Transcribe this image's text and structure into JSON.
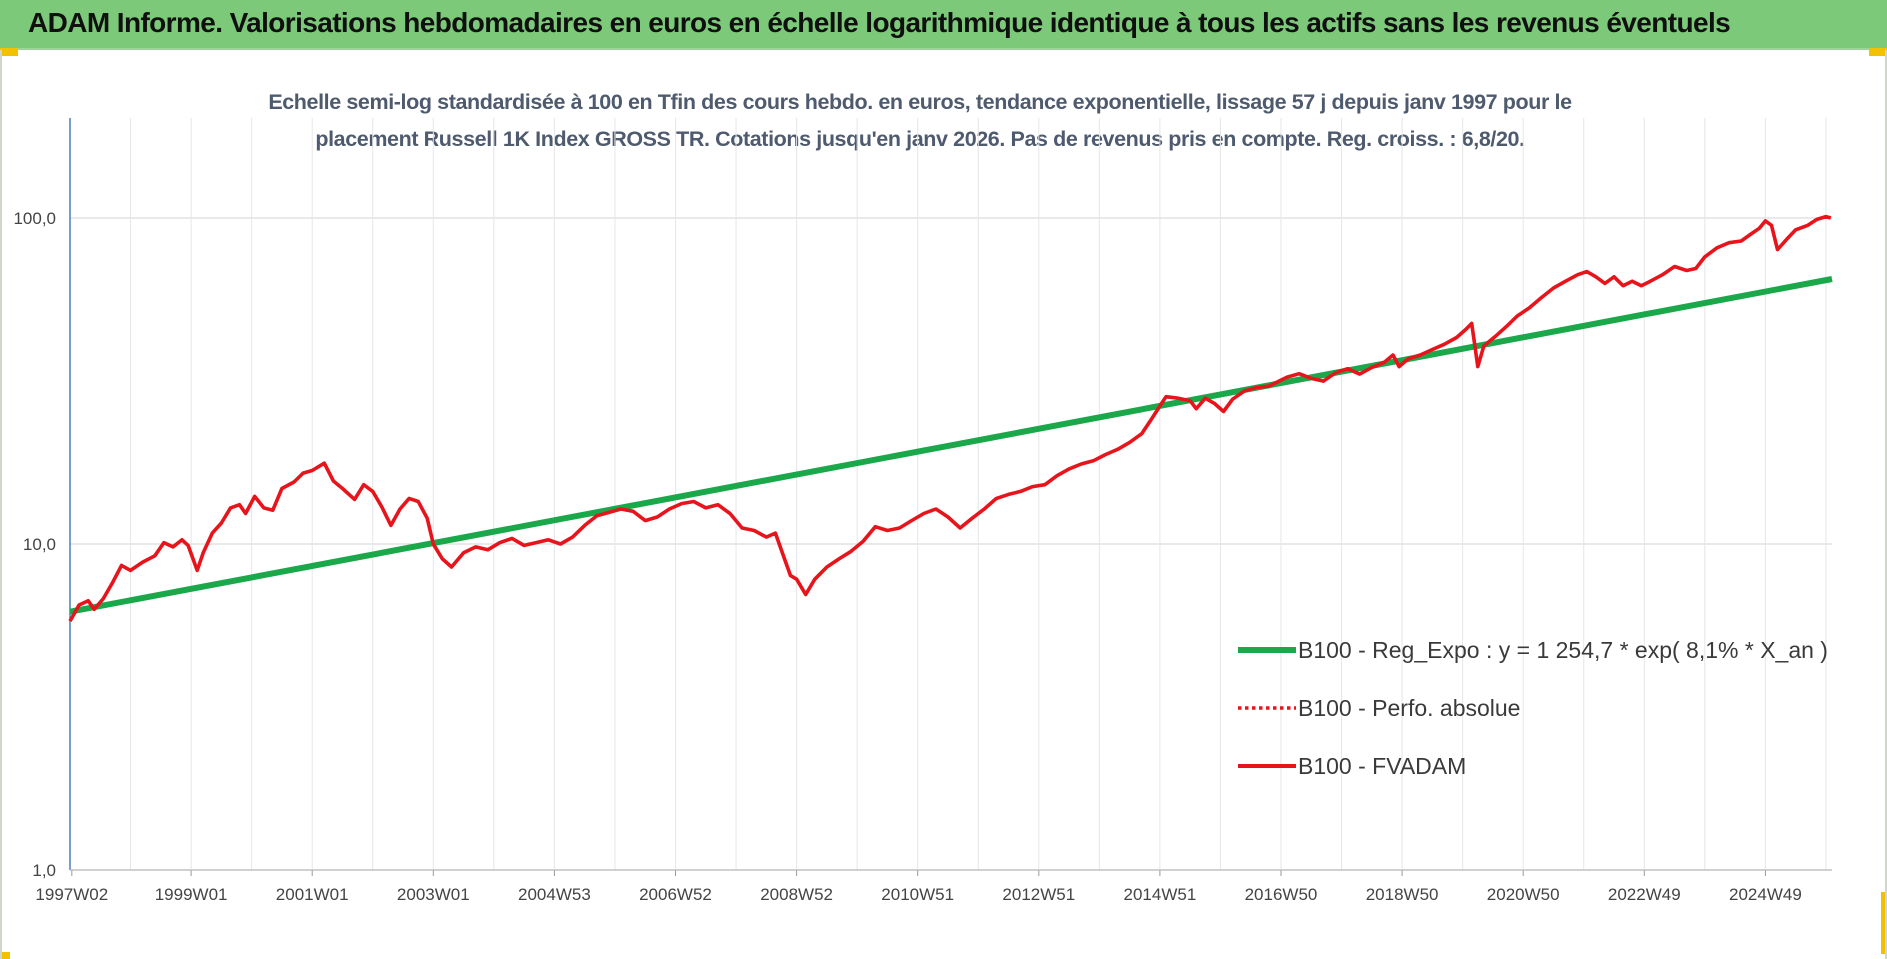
{
  "header": {
    "title": "ADAM Informe. Valorisations hebdomadaires en euros en échelle logarithmique identique à tous les actifs sans les revenus éventuels"
  },
  "chart_data": {
    "type": "line",
    "title_line1": "Echelle semi-log standardisée à 100 en Tfin des cours hebdo. en euros, tendance exponentielle, lissage 57 j depuis janv 1997 pour le",
    "title_line2": "placement Russell 1K Index GROSS TR. Cotations jusqu'en janv 2026. Pas de revenus pris en compte. Reg. croiss. : 6,8/20.",
    "y_scale": "log",
    "ylim": [
      1,
      200
    ],
    "y_ticks": [
      {
        "value": 1,
        "label": "1,0"
      },
      {
        "value": 10,
        "label": "10,0"
      },
      {
        "value": 100,
        "label": "100,0"
      }
    ],
    "xlim": [
      1997.0,
      2026.1
    ],
    "x_ticks": [
      {
        "value": 1997.03,
        "label": "1997W02"
      },
      {
        "value": 1999.0,
        "label": "1999W01"
      },
      {
        "value": 2001.0,
        "label": "2001W01"
      },
      {
        "value": 2003.0,
        "label": "2003W01"
      },
      {
        "value": 2005.0,
        "label": "2004W53"
      },
      {
        "value": 2007.0,
        "label": "2006W52"
      },
      {
        "value": 2009.0,
        "label": "2008W52"
      },
      {
        "value": 2011.0,
        "label": "2010W51"
      },
      {
        "value": 2013.0,
        "label": "2012W51"
      },
      {
        "value": 2015.0,
        "label": "2014W51"
      },
      {
        "value": 2017.0,
        "label": "2016W50"
      },
      {
        "value": 2019.0,
        "label": "2018W50"
      },
      {
        "value": 2021.0,
        "label": "2020W50"
      },
      {
        "value": 2023.0,
        "label": "2022W49"
      },
      {
        "value": 2025.0,
        "label": "2024W49"
      }
    ],
    "grid": "vertical and horizontal",
    "legend_position": "right-lower",
    "series": [
      {
        "name": "B100 - Reg_Expo : y = 1 254,7 * exp( 8,1% *  X_an )",
        "color": "#1aa84a",
        "style": "solid",
        "points": [
          [
            1997.0,
            6.2
          ],
          [
            2026.1,
            65.0
          ]
        ]
      },
      {
        "name": "B100 - Perfo. absolue",
        "color": "#e8141c",
        "style": "dotted",
        "points": []
      },
      {
        "name": "B100 - FVADAM",
        "color": "#e8141c",
        "style": "solid",
        "points": [
          [
            1997.0,
            5.8
          ],
          [
            1997.15,
            6.5
          ],
          [
            1997.3,
            6.7
          ],
          [
            1997.4,
            6.3
          ],
          [
            1997.55,
            6.8
          ],
          [
            1997.7,
            7.6
          ],
          [
            1997.85,
            8.6
          ],
          [
            1998.0,
            8.3
          ],
          [
            1998.2,
            8.8
          ],
          [
            1998.4,
            9.2
          ],
          [
            1998.55,
            10.1
          ],
          [
            1998.7,
            9.8
          ],
          [
            1998.85,
            10.3
          ],
          [
            1998.95,
            9.9
          ],
          [
            1999.1,
            8.3
          ],
          [
            1999.2,
            9.4
          ],
          [
            1999.35,
            10.8
          ],
          [
            1999.5,
            11.6
          ],
          [
            1999.65,
            12.9
          ],
          [
            1999.8,
            13.2
          ],
          [
            1999.9,
            12.4
          ],
          [
            2000.05,
            14.0
          ],
          [
            2000.2,
            12.9
          ],
          [
            2000.35,
            12.7
          ],
          [
            2000.5,
            14.8
          ],
          [
            2000.7,
            15.5
          ],
          [
            2000.85,
            16.5
          ],
          [
            2001.0,
            16.8
          ],
          [
            2001.2,
            17.7
          ],
          [
            2001.35,
            15.6
          ],
          [
            2001.5,
            14.8
          ],
          [
            2001.7,
            13.7
          ],
          [
            2001.85,
            15.2
          ],
          [
            2002.0,
            14.5
          ],
          [
            2002.15,
            13.0
          ],
          [
            2002.3,
            11.4
          ],
          [
            2002.45,
            12.8
          ],
          [
            2002.6,
            13.8
          ],
          [
            2002.75,
            13.5
          ],
          [
            2002.9,
            12.0
          ],
          [
            2003.0,
            10.0
          ],
          [
            2003.15,
            9.0
          ],
          [
            2003.3,
            8.5
          ],
          [
            2003.5,
            9.4
          ],
          [
            2003.7,
            9.8
          ],
          [
            2003.9,
            9.6
          ],
          [
            2004.1,
            10.1
          ],
          [
            2004.3,
            10.4
          ],
          [
            2004.5,
            9.9
          ],
          [
            2004.7,
            10.1
          ],
          [
            2004.9,
            10.3
          ],
          [
            2005.1,
            10.0
          ],
          [
            2005.3,
            10.5
          ],
          [
            2005.5,
            11.4
          ],
          [
            2005.7,
            12.2
          ],
          [
            2005.9,
            12.5
          ],
          [
            2006.1,
            12.8
          ],
          [
            2006.3,
            12.6
          ],
          [
            2006.5,
            11.8
          ],
          [
            2006.7,
            12.1
          ],
          [
            2006.9,
            12.8
          ],
          [
            2007.1,
            13.3
          ],
          [
            2007.3,
            13.5
          ],
          [
            2007.5,
            12.9
          ],
          [
            2007.7,
            13.2
          ],
          [
            2007.9,
            12.4
          ],
          [
            2008.1,
            11.2
          ],
          [
            2008.3,
            11.0
          ],
          [
            2008.5,
            10.5
          ],
          [
            2008.65,
            10.8
          ],
          [
            2008.8,
            9.0
          ],
          [
            2008.9,
            8.0
          ],
          [
            2009.0,
            7.8
          ],
          [
            2009.15,
            7.0
          ],
          [
            2009.3,
            7.8
          ],
          [
            2009.5,
            8.5
          ],
          [
            2009.7,
            9.0
          ],
          [
            2009.9,
            9.5
          ],
          [
            2010.1,
            10.2
          ],
          [
            2010.3,
            11.3
          ],
          [
            2010.5,
            11.0
          ],
          [
            2010.7,
            11.2
          ],
          [
            2010.9,
            11.8
          ],
          [
            2011.1,
            12.4
          ],
          [
            2011.3,
            12.8
          ],
          [
            2011.5,
            12.1
          ],
          [
            2011.7,
            11.2
          ],
          [
            2011.9,
            12.0
          ],
          [
            2012.1,
            12.8
          ],
          [
            2012.3,
            13.8
          ],
          [
            2012.5,
            14.2
          ],
          [
            2012.7,
            14.5
          ],
          [
            2012.9,
            15.0
          ],
          [
            2013.1,
            15.2
          ],
          [
            2013.3,
            16.2
          ],
          [
            2013.5,
            17.0
          ],
          [
            2013.7,
            17.6
          ],
          [
            2013.9,
            18.0
          ],
          [
            2014.1,
            18.8
          ],
          [
            2014.3,
            19.5
          ],
          [
            2014.5,
            20.5
          ],
          [
            2014.7,
            21.8
          ],
          [
            2014.85,
            24.0
          ],
          [
            2015.0,
            26.5
          ],
          [
            2015.1,
            28.3
          ],
          [
            2015.3,
            28.0
          ],
          [
            2015.5,
            27.5
          ],
          [
            2015.6,
            26.0
          ],
          [
            2015.75,
            28.0
          ],
          [
            2015.9,
            27.0
          ],
          [
            2016.05,
            25.5
          ],
          [
            2016.2,
            27.8
          ],
          [
            2016.4,
            29.5
          ],
          [
            2016.6,
            30.2
          ],
          [
            2016.8,
            30.5
          ],
          [
            2016.95,
            31.5
          ],
          [
            2017.1,
            32.5
          ],
          [
            2017.3,
            33.3
          ],
          [
            2017.5,
            32.2
          ],
          [
            2017.7,
            31.6
          ],
          [
            2017.9,
            33.5
          ],
          [
            2018.1,
            34.5
          ],
          [
            2018.3,
            33.2
          ],
          [
            2018.5,
            34.8
          ],
          [
            2018.7,
            36.0
          ],
          [
            2018.85,
            38.0
          ],
          [
            2018.95,
            35.0
          ],
          [
            2019.1,
            37.0
          ],
          [
            2019.3,
            38.0
          ],
          [
            2019.5,
            39.5
          ],
          [
            2019.7,
            41.0
          ],
          [
            2019.9,
            43.0
          ],
          [
            2020.05,
            45.5
          ],
          [
            2020.15,
            47.5
          ],
          [
            2020.25,
            35.0
          ],
          [
            2020.35,
            40.5
          ],
          [
            2020.55,
            43.5
          ],
          [
            2020.75,
            47.0
          ],
          [
            2020.9,
            50.0
          ],
          [
            2021.1,
            53.0
          ],
          [
            2021.3,
            57.0
          ],
          [
            2021.5,
            61.0
          ],
          [
            2021.7,
            64.0
          ],
          [
            2021.9,
            67.0
          ],
          [
            2022.05,
            68.5
          ],
          [
            2022.2,
            66.0
          ],
          [
            2022.35,
            63.0
          ],
          [
            2022.5,
            66.0
          ],
          [
            2022.65,
            62.0
          ],
          [
            2022.8,
            64.0
          ],
          [
            2022.95,
            62.0
          ],
          [
            2023.1,
            64.0
          ],
          [
            2023.3,
            67.0
          ],
          [
            2023.5,
            71.0
          ],
          [
            2023.7,
            69.0
          ],
          [
            2023.85,
            70.0
          ],
          [
            2024.0,
            76.0
          ],
          [
            2024.2,
            81.0
          ],
          [
            2024.4,
            84.0
          ],
          [
            2024.6,
            85.0
          ],
          [
            2024.75,
            89.0
          ],
          [
            2024.9,
            93.0
          ],
          [
            2025.0,
            98.0
          ],
          [
            2025.1,
            95.0
          ],
          [
            2025.2,
            80.0
          ],
          [
            2025.35,
            86.0
          ],
          [
            2025.5,
            92.0
          ],
          [
            2025.7,
            95.0
          ],
          [
            2025.85,
            99.0
          ],
          [
            2026.0,
            101.0
          ],
          [
            2026.08,
            100.0
          ]
        ]
      }
    ]
  }
}
